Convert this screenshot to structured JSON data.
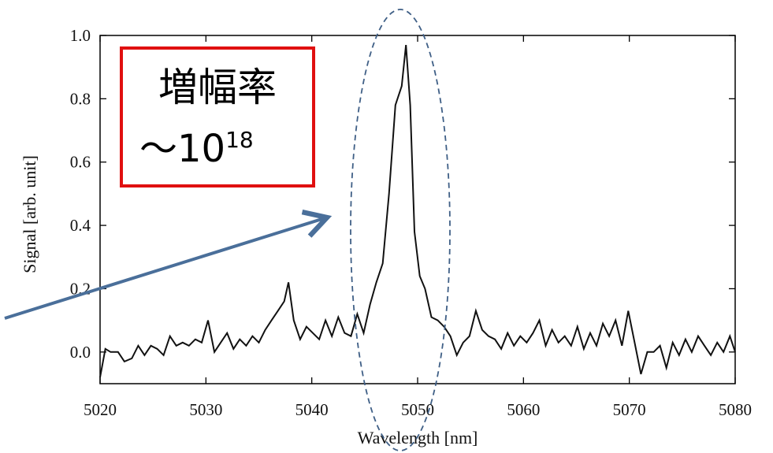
{
  "colors": {
    "series": "#111111",
    "callout_border": "#e01010",
    "arrow": "#4a6f9a",
    "ellipse": "#3f5f86"
  },
  "annotation": {
    "line1": "増幅率",
    "line2_prefix": "～10",
    "line2_exponent": "18"
  },
  "chart_data": {
    "type": "line",
    "xlabel": "Wavelength [nm]",
    "ylabel": "Signal [arb. unit]",
    "xlim": [
      5020,
      5080
    ],
    "ylim": [
      -0.1,
      1.0
    ],
    "xticks": [
      5020,
      5030,
      5040,
      5050,
      5060,
      5070,
      5080
    ],
    "yticks": [
      0.0,
      0.2,
      0.4,
      0.6,
      0.8,
      1.0
    ],
    "xtick_labels": [
      "5020",
      "5030",
      "5040",
      "5050",
      "5060",
      "5070",
      "5080"
    ],
    "ytick_labels": [
      "0.0",
      "0.2",
      "0.4",
      "0.6",
      "0.8",
      "1.0"
    ],
    "grid": false,
    "series": [
      {
        "x": [
          5020,
          5020.5,
          5021,
          5021.7,
          5022.3,
          5023,
          5023.6,
          5024.2,
          5024.8,
          5025.4,
          5026,
          5026.6,
          5027.2,
          5027.8,
          5028.4,
          5029,
          5029.6,
          5030.2,
          5030.8,
          5031.4,
          5032,
          5032.6,
          5033.2,
          5033.8,
          5034.4,
          5035,
          5035.6,
          5036.2,
          5036.8,
          5037.4,
          5037.8,
          5038.3,
          5038.9,
          5039.5,
          5040.1,
          5040.7,
          5041.3,
          5041.9,
          5042.5,
          5043.1,
          5043.7,
          5044.3,
          5044.9,
          5045.5,
          5046.1,
          5046.7,
          5047.3,
          5047.9,
          5048.5,
          5048.9,
          5049.3,
          5049.7,
          5050.2,
          5050.7,
          5051.3,
          5051.9,
          5052.5,
          5053.1,
          5053.7,
          5054.3,
          5054.9,
          5055.5,
          5056.1,
          5056.7,
          5057.3,
          5057.9,
          5058.5,
          5059.1,
          5059.7,
          5060.3,
          5060.9,
          5061.5,
          5062.1,
          5062.7,
          5063.3,
          5063.9,
          5064.5,
          5065.1,
          5065.7,
          5066.3,
          5066.9,
          5067.5,
          5068.1,
          5068.7,
          5069.3,
          5069.9,
          5070.5,
          5071.1,
          5071.7,
          5072.3,
          5072.9,
          5073.5,
          5074.1,
          5074.7,
          5075.3,
          5075.9,
          5076.5,
          5077.1,
          5077.7,
          5078.3,
          5078.9,
          5079.5,
          5080
        ],
        "y": [
          -0.08,
          0.01,
          0.0,
          0.0,
          -0.03,
          -0.02,
          0.02,
          -0.01,
          0.02,
          0.01,
          -0.01,
          0.05,
          0.02,
          0.03,
          0.02,
          0.04,
          0.03,
          0.1,
          0.0,
          0.03,
          0.06,
          0.01,
          0.04,
          0.02,
          0.05,
          0.03,
          0.07,
          0.1,
          0.13,
          0.16,
          0.22,
          0.1,
          0.04,
          0.08,
          0.06,
          0.04,
          0.1,
          0.05,
          0.11,
          0.06,
          0.05,
          0.12,
          0.06,
          0.15,
          0.22,
          0.28,
          0.5,
          0.78,
          0.84,
          0.97,
          0.78,
          0.38,
          0.24,
          0.2,
          0.11,
          0.1,
          0.08,
          0.05,
          -0.01,
          0.03,
          0.05,
          0.13,
          0.07,
          0.05,
          0.04,
          0.01,
          0.06,
          0.02,
          0.05,
          0.03,
          0.06,
          0.1,
          0.02,
          0.07,
          0.03,
          0.05,
          0.02,
          0.08,
          0.01,
          0.06,
          0.02,
          0.09,
          0.05,
          0.1,
          0.02,
          0.13,
          0.03,
          -0.07,
          0.0,
          0.0,
          0.02,
          -0.05,
          0.03,
          -0.01,
          0.04,
          0.0,
          0.05,
          0.02,
          -0.01,
          0.03,
          0.0,
          0.05,
          0.0
        ]
      }
    ]
  }
}
